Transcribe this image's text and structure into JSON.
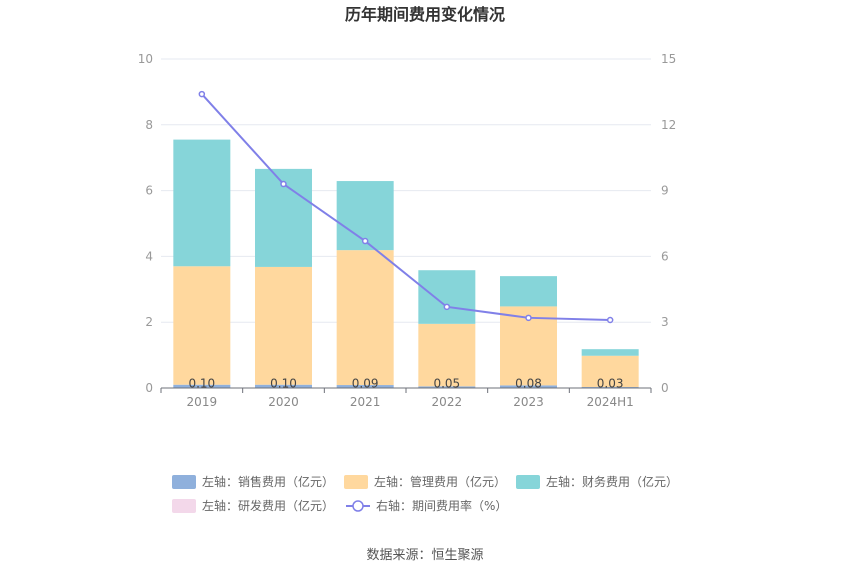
{
  "chart_data": {
    "type": "bar",
    "title": "历年期间费用变化情况",
    "categories": [
      "2019",
      "2020",
      "2021",
      "2022",
      "2023",
      "2024H1"
    ],
    "left_axis": {
      "ylim": [
        0,
        10
      ],
      "ticks": [
        "0",
        "2",
        "4",
        "6",
        "8",
        "10"
      ]
    },
    "right_axis": {
      "ylim": [
        0,
        15
      ],
      "ticks": [
        "0",
        "3",
        "6",
        "9",
        "12",
        "15"
      ]
    },
    "series": [
      {
        "name": "左轴：销售费用（亿元）",
        "type": "bar",
        "stack": true,
        "axis": "left",
        "color": "#8fb0dc",
        "values": [
          0.1,
          0.1,
          0.09,
          0.05,
          0.08,
          0.03
        ],
        "labels": [
          "0.10",
          "0.10",
          "0.09",
          "0.05",
          "0.08",
          "0.03"
        ]
      },
      {
        "name": "左轴：管理费用（亿元）",
        "type": "bar",
        "stack": true,
        "axis": "left",
        "color": "#ffd89e",
        "values": [
          3.6,
          3.58,
          4.1,
          1.9,
          2.4,
          0.95
        ]
      },
      {
        "name": "左轴：财务费用（亿元）",
        "type": "bar",
        "stack": true,
        "axis": "left",
        "color": "#86d5d9",
        "values": [
          3.85,
          2.98,
          2.1,
          1.63,
          0.92,
          0.2
        ]
      },
      {
        "name": "左轴：研发费用（亿元）",
        "type": "bar",
        "stack": true,
        "axis": "left",
        "color": "#f3d8ea",
        "values": [
          0,
          0,
          0,
          0,
          0,
          0
        ]
      },
      {
        "name": "右轴：期间费用率（%）",
        "type": "line",
        "axis": "right",
        "color": "#8080e8",
        "values": [
          13.4,
          9.3,
          6.7,
          3.7,
          3.2,
          3.1
        ]
      }
    ],
    "grid": true,
    "legend_position": "bottom",
    "source": "数据来源：恒生聚源"
  }
}
